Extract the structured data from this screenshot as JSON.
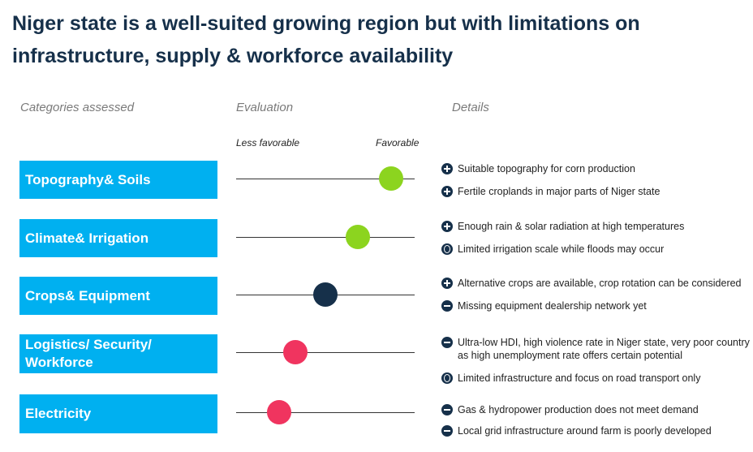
{
  "title": "Niger state is a well-suited growing region but with limitations on infrastructure, supply & workforce availability",
  "headers": {
    "categories": "Categories assessed",
    "evaluation": "Evaluation",
    "details": "Details"
  },
  "scale": {
    "left": "Less favorable",
    "right": "Favorable"
  },
  "colors": {
    "category_bg": "#00b0f0",
    "very_favorable": "#8cd41f",
    "neutral": "#16304a",
    "unfavorable": "#f0345f"
  },
  "rows": [
    {
      "category": "Topography& Soils",
      "evaluation": 0.87,
      "color": "#8cd41f",
      "details": [
        {
          "icon": "plus-icon",
          "text": "Suitable topography for corn production"
        },
        {
          "icon": "plus-icon",
          "text": "Fertile croplands in major parts of Niger state"
        }
      ]
    },
    {
      "category": "Climate& Irrigation",
      "evaluation": 0.68,
      "color": "#8cd41f",
      "details": [
        {
          "icon": "plus-icon",
          "text": "Enough rain & solar radiation at high temperatures"
        },
        {
          "icon": "neutral-icon",
          "text": "Limited irrigation scale while floods may occur"
        }
      ]
    },
    {
      "category": "Crops& Equipment",
      "evaluation": 0.5,
      "color": "#16304a",
      "details": [
        {
          "icon": "plus-icon",
          "text": "Alternative crops are available, crop rotation can be considered"
        },
        {
          "icon": "minus-icon",
          "text": "Missing equipment dealership network yet"
        }
      ]
    },
    {
      "category": "Logistics/ Security/ Workforce",
      "evaluation": 0.33,
      "color": "#f0345f",
      "details": [
        {
          "icon": "minus-icon",
          "text": "Ultra-low HDI, high violence rate in Niger state, very poor country as high unemployment rate offers certain potential"
        },
        {
          "icon": "neutral-icon",
          "text": "Limited infrastructure and focus on road transport only"
        }
      ]
    },
    {
      "category": "Electricity",
      "evaluation": 0.24,
      "color": "#f0345f",
      "details": [
        {
          "icon": "minus-icon",
          "text": "Gas & hydropower production does not meet demand"
        },
        {
          "icon": "minus-icon",
          "text": "Local grid infrastructure around farm is poorly developed"
        }
      ]
    }
  ]
}
